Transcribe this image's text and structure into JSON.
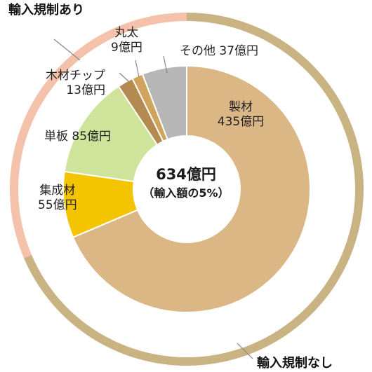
{
  "chart_data": {
    "type": "pie",
    "total_label": "634億円",
    "total_note": "（輸入額の5%）",
    "outer_ring": {
      "segments": [
        {
          "label": "輸入規制あり",
          "value": 199,
          "color": "#f4c1aa"
        },
        {
          "label": "輸入規制なし",
          "value": 435,
          "color": "#c9b383"
        }
      ]
    },
    "inner_ring": {
      "segments": [
        {
          "name": "製材",
          "value_label": "435億円",
          "value": 435,
          "color": "#dcb786"
        },
        {
          "name": "集成材",
          "value_label": "55億円",
          "value": 55,
          "color": "#f5c400"
        },
        {
          "name": "単板",
          "value_label": "85億円",
          "value": 85,
          "color": "#cfe39a"
        },
        {
          "name": "木材チップ",
          "value_label": "13億円",
          "value": 13,
          "color": "#b38a4f"
        },
        {
          "name": "丸太",
          "value_label": "9億円",
          "value": 9,
          "color": "#d0a45c"
        },
        {
          "name": "その他",
          "value_label": "37億円",
          "value": 37,
          "color": "#b7b7b7"
        }
      ]
    }
  }
}
